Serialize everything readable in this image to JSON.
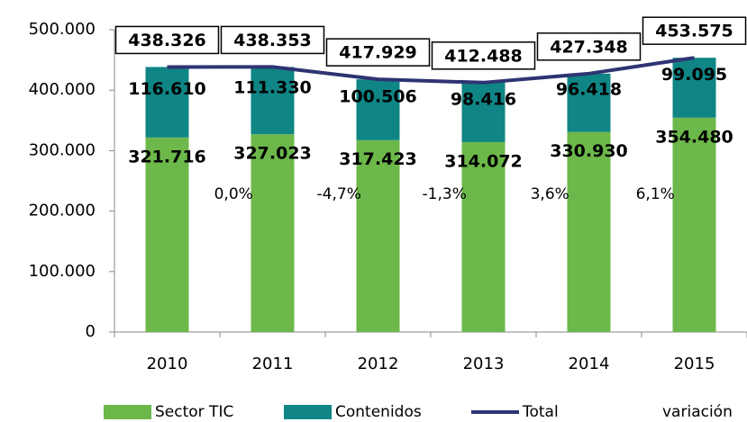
{
  "chart_data": {
    "type": "stacked-bar-line",
    "categories": [
      "2010",
      "2011",
      "2012",
      "2013",
      "2014",
      "2015"
    ],
    "ylim": [
      0,
      500000
    ],
    "yticks": [
      0,
      {
        "value": 100000,
        "label": "100.000"
      },
      {
        "value": 200000,
        "label": "200.000"
      },
      {
        "value": 300000,
        "label": "300.000"
      },
      {
        "value": 400000,
        "label": "400.000"
      },
      {
        "value": 500000,
        "label": "500.000"
      }
    ],
    "series": [
      {
        "name": "Sector TIC",
        "color": "#6cb84a",
        "values": [
          321716,
          327023,
          317423,
          314072,
          330930,
          354480
        ],
        "value_labels": [
          "321.716",
          "327.023",
          "317.423",
          "314.072",
          "330.930",
          "354.480"
        ]
      },
      {
        "name": "Contenidos",
        "color": "#0f8585",
        "values": [
          116610,
          111330,
          100506,
          98416,
          96418,
          99095
        ],
        "value_labels": [
          "116.610",
          "111.330",
          "100.506",
          "98.416",
          "96.418",
          "99.095"
        ]
      },
      {
        "name": "Total",
        "color": "#2e3472",
        "values": [
          438326,
          438353,
          417929,
          412488,
          427348,
          453575
        ],
        "value_labels": [
          "438.326",
          "438.353",
          "417.929",
          "412.488",
          "427.348",
          "453.575"
        ]
      }
    ],
    "variation": {
      "name": "variación",
      "values": [
        null,
        0.0,
        -4.7,
        -1.3,
        3.6,
        6.1
      ],
      "value_labels": [
        null,
        "0,0%",
        "-4,7%",
        "-1,3%",
        "3,6%",
        "6,1%"
      ]
    }
  }
}
